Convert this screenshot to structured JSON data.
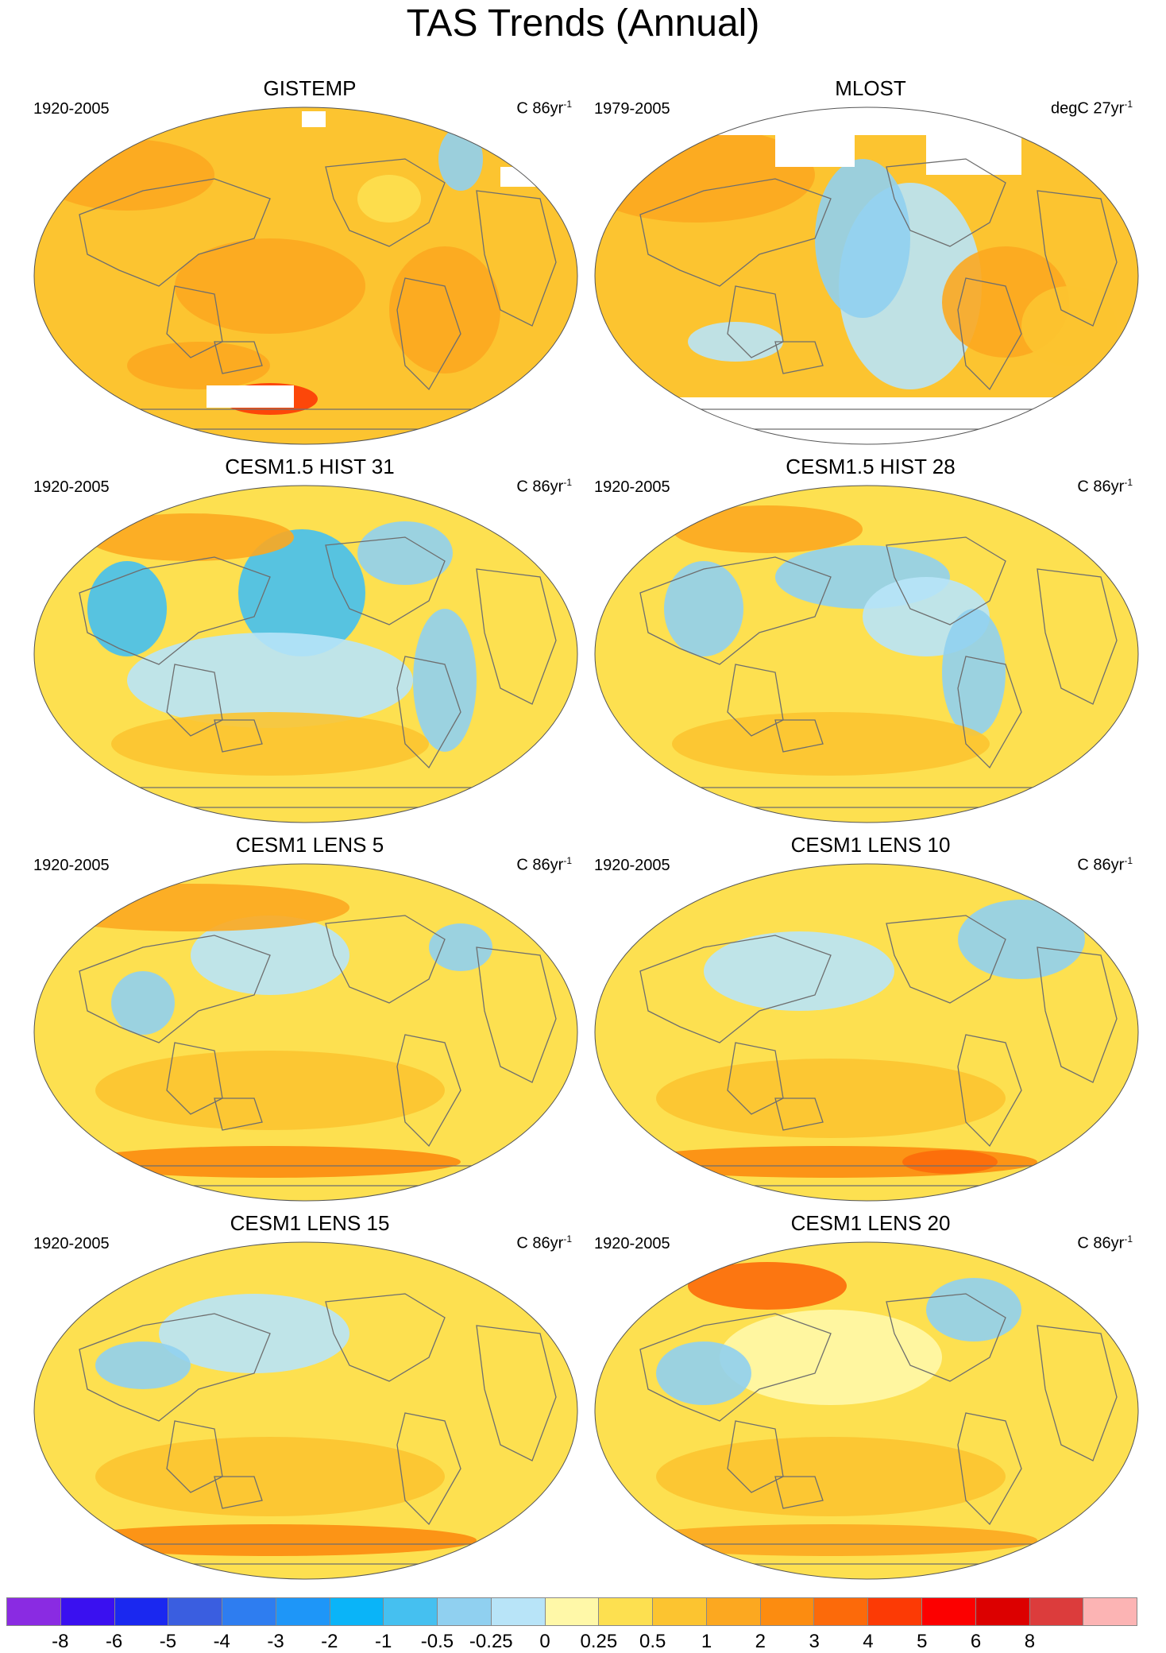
{
  "title": "TAS Trends (Annual)",
  "panels": [
    {
      "name": "GISTEMP",
      "range": "1920-2005",
      "units": "C 86yr",
      "units_sup": "-1",
      "base_color": "#fcc430",
      "has_missing": true,
      "missing": "poles-partial"
    },
    {
      "name": "MLOST",
      "range": "1979-2005",
      "units": "degC 27yr",
      "units_sup": "-1",
      "base_color": "#fcc430",
      "has_missing": true,
      "missing": "poles-large"
    },
    {
      "name": "CESM1.5 HIST 31",
      "range": "1920-2005",
      "units": "C 86yr",
      "units_sup": "-1",
      "base_color": "#fde050",
      "has_missing": false
    },
    {
      "name": "CESM1.5 HIST 28",
      "range": "1920-2005",
      "units": "C 86yr",
      "units_sup": "-1",
      "base_color": "#fde050",
      "has_missing": false
    },
    {
      "name": "CESM1 LENS 5",
      "range": "1920-2005",
      "units": "C 86yr",
      "units_sup": "-1",
      "base_color": "#fde050",
      "has_missing": false
    },
    {
      "name": "CESM1 LENS 10",
      "range": "1920-2005",
      "units": "C 86yr",
      "units_sup": "-1",
      "base_color": "#fde050",
      "has_missing": false
    },
    {
      "name": "CESM1 LENS 15",
      "range": "1920-2005",
      "units": "C 86yr",
      "units_sup": "-1",
      "base_color": "#fde050",
      "has_missing": false
    },
    {
      "name": "CESM1 LENS 20",
      "range": "1920-2005",
      "units": "C 86yr",
      "units_sup": "-1",
      "base_color": "#fde050",
      "has_missing": false
    }
  ],
  "colorbar": {
    "colors": [
      "#8a2be2",
      "#3a10f0",
      "#1a28f0",
      "#3a5ee0",
      "#2e7df0",
      "#1e96f8",
      "#0ab4f8",
      "#45c0f0",
      "#90d0f0",
      "#b8e4f8",
      "#fff8a8",
      "#fde050",
      "#fcc430",
      "#fca820",
      "#fc8c10",
      "#fc6a0a",
      "#fc3a05",
      "#fc0000",
      "#dc0000",
      "#dc3c3c",
      "#fcb4b4"
    ],
    "labels": [
      "-8",
      "-6",
      "-5",
      "-4",
      "-3",
      "-2",
      "-1",
      "-0.5",
      "-0.25",
      "0",
      "0.25",
      "0.5",
      "1",
      "2",
      "3",
      "4",
      "5",
      "6",
      "8"
    ]
  }
}
